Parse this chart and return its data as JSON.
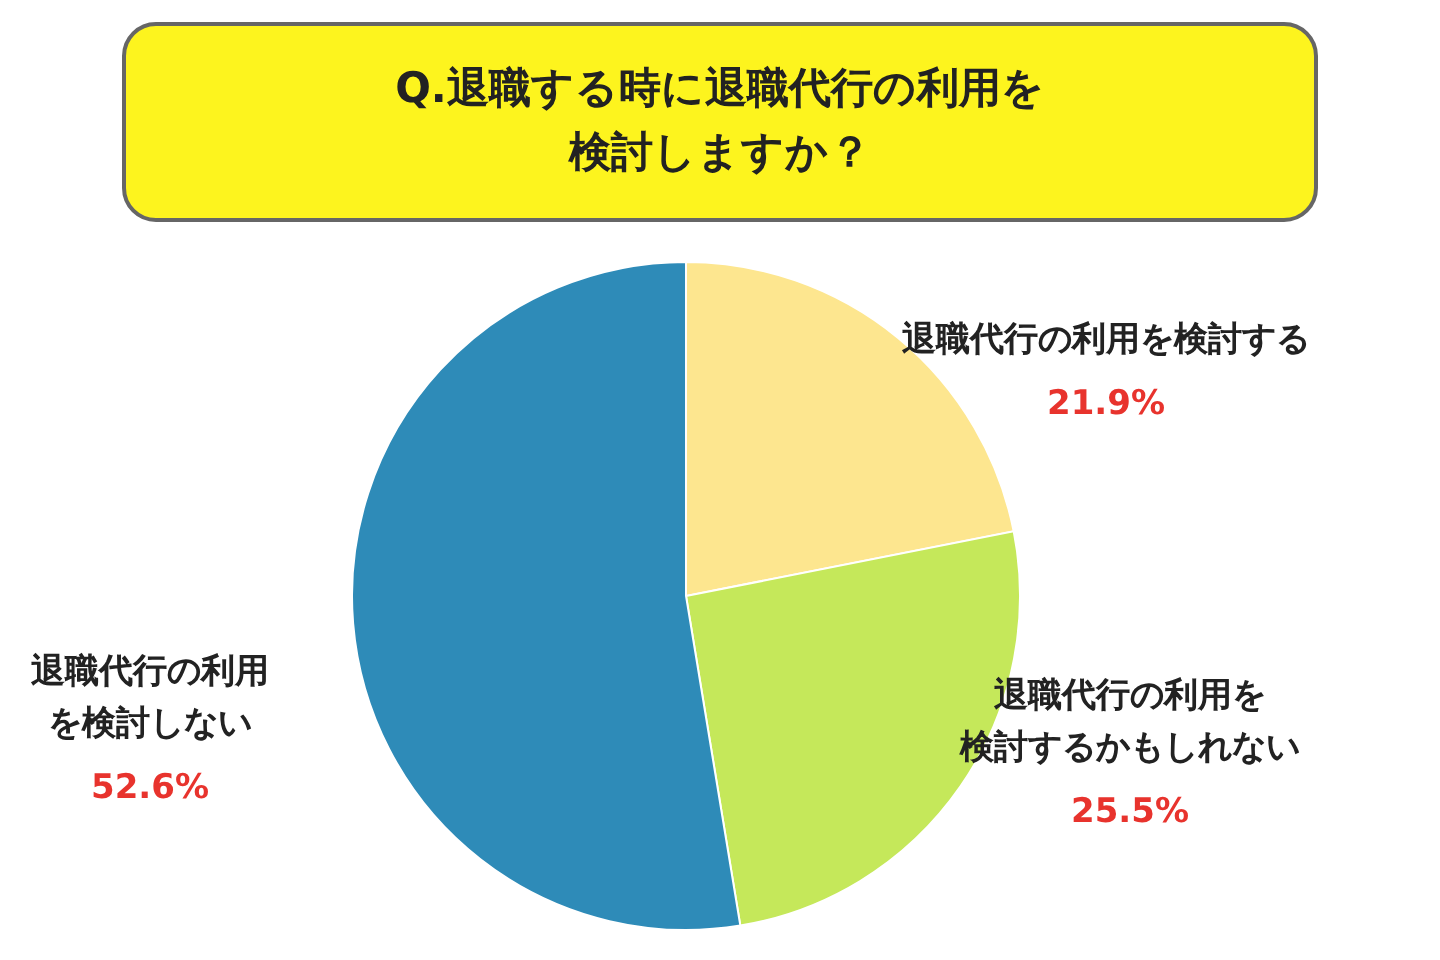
{
  "chart_data": {
    "type": "pie",
    "title": "Q.退職する時に退職代行の利用を検討しますか？",
    "categories": [
      "退職代行の利用を検討する",
      "退職代行の利用を検討するかもしれない",
      "退職代行の利用を検討しない"
    ],
    "values": [
      21.9,
      25.5,
      52.6
    ],
    "colors": [
      "#fde68f",
      "#c5e85a",
      "#2e8bb8"
    ],
    "value_labels": [
      "21.9%",
      "25.5%",
      "52.6%"
    ]
  }
}
